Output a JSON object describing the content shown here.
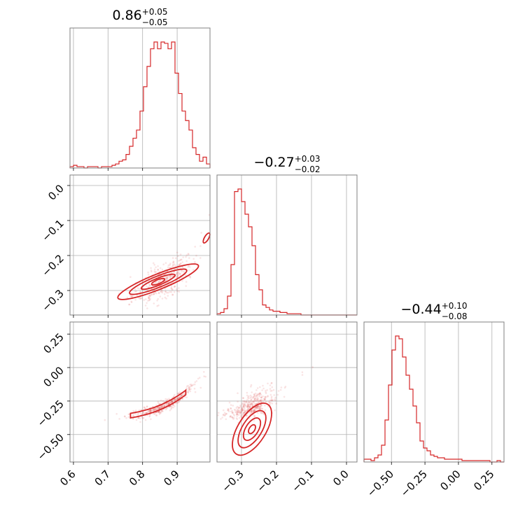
{
  "chart_data": {
    "type": "corner",
    "parameters": [
      {
        "title_value": "0.86",
        "title_plus": "+0.05",
        "title_minus": "−0.05"
      },
      {
        "title_value": "−0.27",
        "title_plus": "+0.03",
        "title_minus": "−0.02"
      },
      {
        "title_value": "−0.44",
        "title_plus": "+0.10",
        "title_minus": "−0.08"
      }
    ],
    "ranges": [
      [
        0.59,
        0.995
      ],
      [
        -0.37,
        0.03
      ],
      [
        -0.705,
        0.34
      ]
    ],
    "ticks": [
      [
        "0.6",
        "0.7",
        "0.8",
        "0.9"
      ],
      [
        "−0.3",
        "−0.2",
        "−0.1",
        "0.0"
      ],
      [
        "−0.50",
        "−0.25",
        "0.00",
        "0.25"
      ]
    ],
    "tick_values": [
      [
        0.6,
        0.7,
        0.8,
        0.9
      ],
      [
        -0.3,
        -0.2,
        -0.1,
        0.0
      ],
      [
        -0.5,
        -0.25,
        0.0,
        0.25
      ]
    ],
    "histograms": [
      {
        "bins": 40,
        "counts": [
          1,
          2,
          1,
          1,
          0,
          1,
          1,
          1,
          0,
          1,
          1,
          1,
          2,
          3,
          5,
          6,
          10,
          16,
          22,
          28,
          42,
          60,
          75,
          88,
          93,
          88,
          93,
          92,
          88,
          93,
          70,
          55,
          42,
          35,
          28,
          15,
          10,
          5,
          8,
          3
        ]
      },
      {
        "bins": 40,
        "counts": [
          1,
          2,
          5,
          15,
          40,
          98,
          100,
          90,
          80,
          70,
          55,
          32,
          20,
          8,
          6,
          4,
          3,
          3,
          2,
          2,
          1,
          1,
          1,
          1,
          0,
          0,
          0,
          0,
          0,
          0,
          0,
          0,
          0,
          0,
          0,
          0,
          0,
          0,
          0,
          0
        ]
      },
      {
        "bins": 40,
        "counts": [
          2,
          2,
          1,
          3,
          5,
          12,
          30,
          55,
          80,
          90,
          88,
          75,
          62,
          52,
          40,
          28,
          15,
          10,
          8,
          5,
          4,
          3,
          3,
          2,
          2,
          2,
          2,
          2,
          1,
          1,
          1,
          1,
          1,
          1,
          1,
          1,
          0,
          0,
          1,
          0
        ]
      }
    ],
    "color": "#d62728",
    "grid": true,
    "legend": "none"
  }
}
